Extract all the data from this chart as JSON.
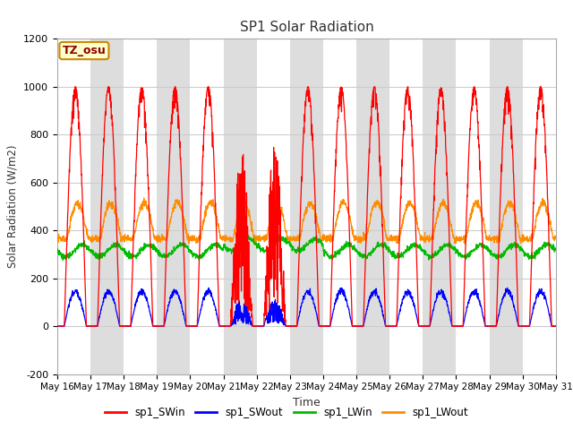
{
  "title": "SP1 Solar Radiation",
  "xlabel": "Time",
  "ylabel": "Solar Radiation (W/m2)",
  "ylim": [
    -200,
    1200
  ],
  "yticks": [
    -200,
    0,
    200,
    400,
    600,
    800,
    1000,
    1200
  ],
  "x_labels": [
    "May 16",
    "May 17",
    "May 18",
    "May 19",
    "May 20",
    "May 21",
    "May 22",
    "May 23",
    "May 24",
    "May 25",
    "May 26",
    "May 27",
    "May 28",
    "May 29",
    "May 30",
    "May 31"
  ],
  "annotation_text": "TZ_osu",
  "annotation_color": "#8b0000",
  "annotation_bg": "#ffffcc",
  "annotation_border": "#cc8800",
  "colors": {
    "sp1_SWin": "#ff0000",
    "sp1_SWout": "#0000ff",
    "sp1_LWin": "#00bb00",
    "sp1_LWout": "#ff8c00"
  },
  "bg_color": "#ffffff",
  "plot_bg_light": "#ffffff",
  "plot_bg_dark": "#e8e8e8",
  "grid_color": "#cccccc",
  "num_days": 15,
  "points_per_day": 144
}
